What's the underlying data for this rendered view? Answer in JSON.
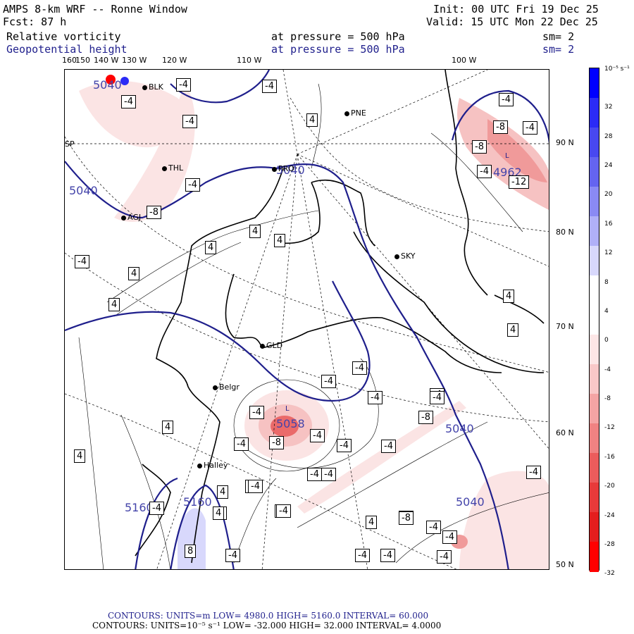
{
  "header": {
    "model": "AMPS 8-km WRF -- Ronne Window",
    "forecast": "Fcst:   87 h",
    "init": "Init: 00 UTC Fri 19 Dec 25",
    "valid": "Valid: 15 UTC Mon 22 Dec 25",
    "field1_name": "Relative vorticity",
    "field1_level": "at pressure =  500 hPa",
    "field1_smooth": "sm= 2",
    "field2_name": "Geopotential height",
    "field2_level": "at pressure =  500 hPa",
    "field2_smooth": "sm= 2"
  },
  "map": {
    "lon_labels": [
      "160",
      "150",
      "140 W",
      "130 W",
      "120 W",
      "110 W",
      "100 W"
    ],
    "lat_labels": [
      "90 N",
      "80 N",
      "70 N",
      "60 N",
      "50 N"
    ],
    "stations": [
      "BLK",
      "THL",
      "AGJ",
      "PNE",
      "PRO",
      "SKY",
      "GLD",
      "Belgr",
      "Halley",
      "SP"
    ],
    "height_labels": [
      "5040",
      "5040",
      "5040",
      "5040",
      "5040",
      "5160",
      "5160",
      "4962",
      "5058"
    ],
    "lows": [
      "L",
      "L"
    ],
    "vort_boxes": [
      "-4",
      "-4",
      "-4",
      "4",
      "-4",
      "-4",
      "-8",
      "4",
      "4",
      "4",
      "-4",
      "4",
      "4",
      "-4",
      "-8",
      "-12",
      "-4",
      "-4",
      "-8",
      "-4",
      "-4",
      "-4",
      "-8",
      "-4",
      "4",
      "-4",
      "-4",
      "4",
      "4",
      "-4",
      "-4",
      "-4",
      "4",
      "-4",
      "-4",
      "-4",
      "-8",
      "-4",
      "4",
      "-4",
      "-4",
      "-4",
      "-8",
      "-4",
      "-4",
      "8",
      "-4",
      "-4",
      "-4",
      "4",
      "4",
      "-4",
      "4",
      "-4",
      "-8",
      "-4"
    ]
  },
  "colorbar": {
    "units": "10⁻⁵ s⁻¹",
    "ticks": [
      "32",
      "28",
      "24",
      "20",
      "16",
      "12",
      "8",
      "4",
      "0",
      "-4",
      "-8",
      "-12",
      "-16",
      "-20",
      "-24",
      "-28",
      "-32"
    ],
    "colors": [
      "#0000ff",
      "#2b2bf6",
      "#4848f0",
      "#6464f0",
      "#8a8af4",
      "#b0b0f8",
      "#d8d8fc",
      "#ffffff",
      "#ffffff",
      "#fde6e6",
      "#f9c8c8",
      "#f4a4a4",
      "#f08282",
      "#ec5c5c",
      "#e83a3a",
      "#e41e1e",
      "#ff0000"
    ]
  },
  "footer": {
    "line1": "CONTOURS:  UNITS=m  LOW=  4980.0      HIGH=  5160.0      INTERVAL=   60.000",
    "line2": "CONTOURS:  UNITS=10⁻⁵ s⁻¹  LOW= -32.000      HIGH=  32.000      INTERVAL=   4.0000"
  }
}
